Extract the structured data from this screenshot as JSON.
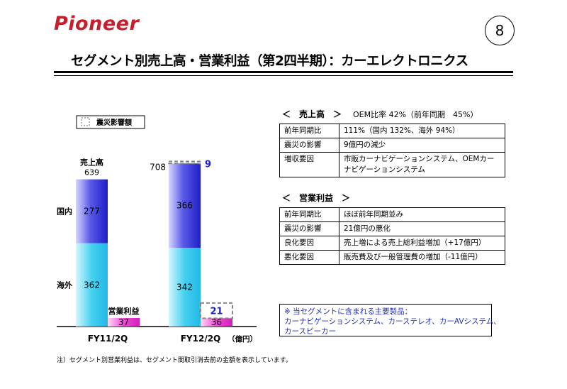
{
  "header": {
    "logo_text": "Pioneer",
    "page_number": "8",
    "title": "セグメント別売上高・営業利益（第2四半期）：カーエレクトロニクス"
  },
  "chart_data": {
    "type": "bar",
    "stacked": true,
    "legend": {
      "label": "震災影響額",
      "placement": "top-left"
    },
    "categories": [
      "FY11/2Q",
      "FY12/2Q"
    ],
    "unit": "（億円）",
    "series": [
      {
        "name": "海外",
        "metric": "sales",
        "values": [
          362,
          342
        ]
      },
      {
        "name": "国内",
        "metric": "sales",
        "values": [
          277,
          366
        ]
      },
      {
        "name": "営業利益",
        "metric": "operating_income",
        "values": [
          37,
          36
        ]
      },
      {
        "name": "震災影響額",
        "metric": "earthquake_impact_sales",
        "values": [
          null,
          9
        ]
      },
      {
        "name": "震災影響額",
        "metric": "earthquake_impact_income",
        "values": [
          null,
          21
        ]
      }
    ],
    "sales_totals": [
      639,
      708
    ],
    "labels": {
      "sales": "売上高",
      "operating_income": "営業利益",
      "domestic": "国内",
      "overseas": "海外"
    },
    "colors": {
      "sales_domestic": "#5a5ae8",
      "sales_overseas": "#45d0f0",
      "income": "#f04ad8",
      "impact_text": "#1a22c8"
    }
  },
  "sales_section": {
    "title": "＜　売上高　＞",
    "note": "OEM比率 42%（前年同期　45%）",
    "rows": [
      {
        "label": "前年同期比",
        "value": "111%（国内 132%、海外 94%）"
      },
      {
        "label": "震災の影響",
        "value": "9億円の減少"
      },
      {
        "label": "増収要因",
        "value": "市販カーナビゲーションシステム、OEMカーナビゲーションシステム"
      }
    ]
  },
  "income_section": {
    "title": "＜　営業利益　＞",
    "rows": [
      {
        "label": "前年同期比",
        "value": "ほぼ前年同期並み"
      },
      {
        "label": "震災の影響",
        "value": "21億円の悪化"
      },
      {
        "label": "良化要因",
        "value": "売上増による売上総利益増加（+17億円）"
      },
      {
        "label": "悪化要因",
        "value": "販売費及び一般管理費の増加（-11億円）"
      }
    ]
  },
  "products_box": {
    "line1": "※ 当セグメントに含まれる主要製品：",
    "line2": "カーナビゲーションシステム、カーステレオ、カーAVシステム、",
    "line3": "カースピーカー"
  },
  "footnote": "注）セグメント別営業利益は、セグメント間取引消去前の金額を表示しています。"
}
